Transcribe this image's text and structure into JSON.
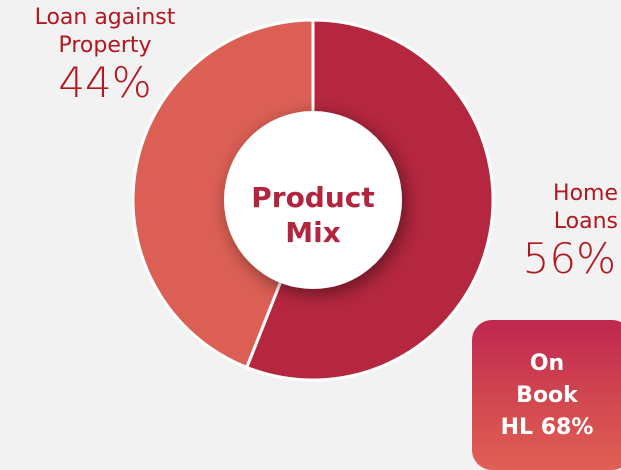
{
  "chart_data": {
    "type": "pie",
    "variant": "donut",
    "title": "Product Mix",
    "title_lines": [
      "Product",
      "Mix"
    ],
    "slices": [
      {
        "label": "Home Loans",
        "label_lines": [
          "Home",
          "Loans"
        ],
        "value": 56,
        "display": "56%",
        "color": "#b5273f"
      },
      {
        "label": "Loan against Property",
        "label_lines": [
          "Loan against",
          "Property"
        ],
        "value": 44,
        "display": "44%",
        "color": "#dc5f55"
      }
    ]
  },
  "badge": {
    "lines": [
      "On",
      "Book",
      "HL 68%"
    ]
  },
  "colors": {
    "background": "#f2f2f2",
    "label_text": "#b2171f",
    "center_text": "#b3243f",
    "badge_top": "#bf2750",
    "badge_bottom": "#e06055"
  }
}
